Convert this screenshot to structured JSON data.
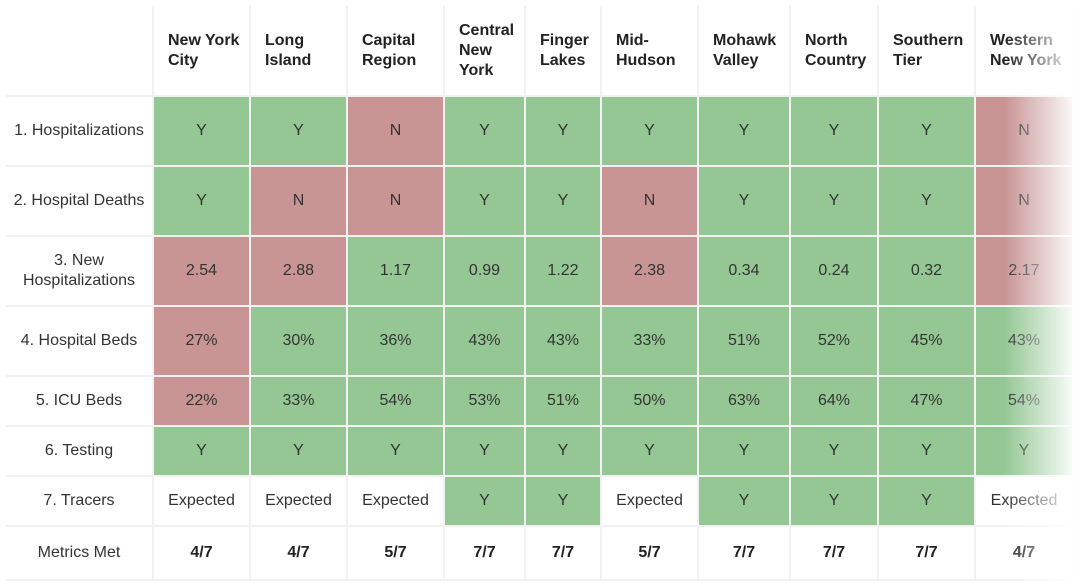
{
  "columns": [
    "New York City",
    "Long Island",
    "Capital Region",
    "Central New York",
    "Finger Lakes",
    "Mid-Hudson",
    "Mohawk Valley",
    "North Country",
    "Southern Tier",
    "Western New York"
  ],
  "rows": [
    {
      "label": "1. Hospitalizations",
      "cells": [
        {
          "v": "Y",
          "s": "g"
        },
        {
          "v": "Y",
          "s": "g"
        },
        {
          "v": "N",
          "s": "r"
        },
        {
          "v": "Y",
          "s": "g"
        },
        {
          "v": "Y",
          "s": "g"
        },
        {
          "v": "Y",
          "s": "g"
        },
        {
          "v": "Y",
          "s": "g"
        },
        {
          "v": "Y",
          "s": "g"
        },
        {
          "v": "Y",
          "s": "g"
        },
        {
          "v": "N",
          "s": "r"
        }
      ]
    },
    {
      "label": "2. Hospital Deaths",
      "cells": [
        {
          "v": "Y",
          "s": "g"
        },
        {
          "v": "N",
          "s": "r"
        },
        {
          "v": "N",
          "s": "r"
        },
        {
          "v": "Y",
          "s": "g"
        },
        {
          "v": "Y",
          "s": "g"
        },
        {
          "v": "N",
          "s": "r"
        },
        {
          "v": "Y",
          "s": "g"
        },
        {
          "v": "Y",
          "s": "g"
        },
        {
          "v": "Y",
          "s": "g"
        },
        {
          "v": "N",
          "s": "r"
        }
      ]
    },
    {
      "label": "3. New Hospitalizations",
      "cells": [
        {
          "v": "2.54",
          "s": "r"
        },
        {
          "v": "2.88",
          "s": "r"
        },
        {
          "v": "1.17",
          "s": "g"
        },
        {
          "v": "0.99",
          "s": "g"
        },
        {
          "v": "1.22",
          "s": "g"
        },
        {
          "v": "2.38",
          "s": "r"
        },
        {
          "v": "0.34",
          "s": "g"
        },
        {
          "v": "0.24",
          "s": "g"
        },
        {
          "v": "0.32",
          "s": "g"
        },
        {
          "v": "2.17",
          "s": "r"
        }
      ]
    },
    {
      "label": "4. Hospital Beds",
      "cells": [
        {
          "v": "27%",
          "s": "r"
        },
        {
          "v": "30%",
          "s": "g"
        },
        {
          "v": "36%",
          "s": "g"
        },
        {
          "v": "43%",
          "s": "g"
        },
        {
          "v": "43%",
          "s": "g"
        },
        {
          "v": "33%",
          "s": "g"
        },
        {
          "v": "51%",
          "s": "g"
        },
        {
          "v": "52%",
          "s": "g"
        },
        {
          "v": "45%",
          "s": "g"
        },
        {
          "v": "43%",
          "s": "g"
        }
      ]
    },
    {
      "label": "5. ICU Beds",
      "cells": [
        {
          "v": "22%",
          "s": "r"
        },
        {
          "v": "33%",
          "s": "g"
        },
        {
          "v": "54%",
          "s": "g"
        },
        {
          "v": "53%",
          "s": "g"
        },
        {
          "v": "51%",
          "s": "g"
        },
        {
          "v": "50%",
          "s": "g"
        },
        {
          "v": "63%",
          "s": "g"
        },
        {
          "v": "64%",
          "s": "g"
        },
        {
          "v": "47%",
          "s": "g"
        },
        {
          "v": "54%",
          "s": "g"
        }
      ]
    },
    {
      "label": "6. Testing",
      "cells": [
        {
          "v": "Y",
          "s": "g"
        },
        {
          "v": "Y",
          "s": "g"
        },
        {
          "v": "Y",
          "s": "g"
        },
        {
          "v": "Y",
          "s": "g"
        },
        {
          "v": "Y",
          "s": "g"
        },
        {
          "v": "Y",
          "s": "g"
        },
        {
          "v": "Y",
          "s": "g"
        },
        {
          "v": "Y",
          "s": "g"
        },
        {
          "v": "Y",
          "s": "g"
        },
        {
          "v": "Y",
          "s": "g"
        }
      ]
    },
    {
      "label": "7. Tracers",
      "cells": [
        {
          "v": "Expected",
          "s": "w"
        },
        {
          "v": "Expected",
          "s": "w"
        },
        {
          "v": "Expected",
          "s": "w"
        },
        {
          "v": "Y",
          "s": "g"
        },
        {
          "v": "Y",
          "s": "g"
        },
        {
          "v": "Expected",
          "s": "w"
        },
        {
          "v": "Y",
          "s": "g"
        },
        {
          "v": "Y",
          "s": "g"
        },
        {
          "v": "Y",
          "s": "g"
        },
        {
          "v": "Expected",
          "s": "w"
        }
      ]
    },
    {
      "label": "Metrics Met",
      "metric": true,
      "cells": [
        {
          "v": "4/7",
          "s": "w"
        },
        {
          "v": "4/7",
          "s": "w"
        },
        {
          "v": "5/7",
          "s": "w"
        },
        {
          "v": "7/7",
          "s": "w"
        },
        {
          "v": "7/7",
          "s": "w"
        },
        {
          "v": "5/7",
          "s": "w"
        },
        {
          "v": "7/7",
          "s": "w"
        },
        {
          "v": "7/7",
          "s": "w"
        },
        {
          "v": "7/7",
          "s": "w"
        },
        {
          "v": "4/7",
          "s": "w"
        }
      ]
    }
  ],
  "colors": {
    "met": "#94c794",
    "not_met": "#c89494",
    "neutral": "#ffffff"
  }
}
